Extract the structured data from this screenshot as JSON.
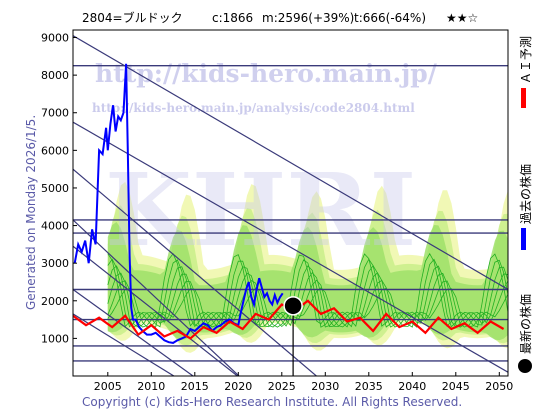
{
  "header": {
    "code_name": "2804=ブルドック",
    "current": "c:1866",
    "max": "m:2596(+39%)",
    "target": "t:666(-64%)",
    "rating": "★★☆"
  },
  "side_label": "Generated on Monday 2026/1/5.",
  "footer": "Copyright (c) Kids-Hero Research Institute. All Rights Reserved.",
  "watermark": {
    "url": "http://kids-hero.main.jp/",
    "analysis_url": "http://kids-hero.main.jp/analysis/code2804.html",
    "logo": "KHRI"
  },
  "legend": [
    {
      "label": "ＡＩ予測",
      "color": "#ff0000"
    },
    {
      "label": "過去の株価",
      "color": "#0000ff"
    },
    {
      "label": "最新の株価",
      "color": "#000000"
    }
  ],
  "chart_data": {
    "type": "line",
    "xlim": [
      2001,
      2051
    ],
    "ylim": [
      0,
      9200
    ],
    "xticks": [
      2005,
      2010,
      2015,
      2020,
      2025,
      2030,
      2035,
      2040,
      2045,
      2050
    ],
    "yticks": [
      1000,
      2000,
      3000,
      4000,
      5000,
      6000,
      7000,
      8000,
      9000
    ],
    "horizontal_levels": [
      8250,
      4150,
      3800,
      2300,
      1500,
      800,
      400
    ],
    "trend_lines": [
      {
        "x": [
          2001,
          2051
        ],
        "y": [
          9050,
          2300
        ]
      },
      {
        "x": [
          2001,
          2051
        ],
        "y": [
          6750,
          100
        ]
      },
      {
        "x": [
          2001,
          2030
        ],
        "y": [
          5500,
          -200
        ]
      },
      {
        "x": [
          2001,
          2021
        ],
        "y": [
          4150,
          -200
        ]
      },
      {
        "x": [
          2001,
          2021
        ],
        "y": [
          3450,
          -200
        ]
      },
      {
        "x": [
          2001,
          2016
        ],
        "y": [
          2300,
          -200
        ]
      },
      {
        "x": [
          2001,
          2014
        ],
        "y": [
          1650,
          -200
        ]
      }
    ],
    "series": [
      {
        "name": "過去の株価",
        "color": "#0000ff",
        "x": [
          2001.2,
          2001.6,
          2002.0,
          2002.4,
          2002.8,
          2003.2,
          2003.6,
          2004.0,
          2004.4,
          2004.8,
          2005.0,
          2005.3,
          2005.6,
          2005.9,
          2006.2,
          2006.5,
          2006.8,
          2007.1,
          2007.3,
          2007.5,
          2007.7,
          2007.9,
          2008.2,
          2008.6,
          2009.0,
          2009.5,
          2010.0,
          2010.5,
          2011.0,
          2011.5,
          2012.0,
          2012.5,
          2013.0,
          2013.5,
          2014.0,
          2014.5,
          2015.0,
          2015.5,
          2016.0,
          2016.5,
          2017.0,
          2017.5,
          2018.0,
          2018.5,
          2019.0,
          2019.5,
          2020.0,
          2020.3,
          2020.6,
          2020.9,
          2021.2,
          2021.5,
          2021.8,
          2022.1,
          2022.4,
          2022.7,
          2023.0,
          2023.3,
          2023.6,
          2023.9,
          2024.2,
          2024.5,
          2024.8,
          2025.1
        ],
        "y": [
          3000,
          3500,
          3300,
          3600,
          3000,
          3900,
          3500,
          6000,
          5900,
          6600,
          6000,
          6700,
          7200,
          6500,
          6900,
          6800,
          7000,
          8300,
          6000,
          3200,
          1800,
          1500,
          1500,
          1300,
          1200,
          1100,
          1100,
          1150,
          1050,
          950,
          900,
          880,
          950,
          1000,
          1050,
          1250,
          1200,
          1300,
          1400,
          1350,
          1200,
          1300,
          1350,
          1450,
          1500,
          1400,
          1350,
          1700,
          2000,
          2300,
          2500,
          2100,
          1900,
          2300,
          2600,
          2350,
          2100,
          2200,
          2000,
          1900,
          2150,
          1950,
          2100,
          2200
        ]
      },
      {
        "name": "ＡＩ予測",
        "color": "#ff0000",
        "x": [
          2001.0,
          2002.5,
          2004.0,
          2005.5,
          2007.0,
          2008.5,
          2010.0,
          2011.5,
          2013.0,
          2014.5,
          2016.0,
          2017.5,
          2019.0,
          2020.5,
          2022.0,
          2023.5,
          2025.0,
          2026.5,
          2028.0,
          2029.5,
          2031.0,
          2032.5,
          2034.0,
          2035.5,
          2037.0,
          2038.5,
          2040.0,
          2041.5,
          2043.0,
          2044.5,
          2046.0,
          2047.5,
          2049.0,
          2050.5
        ],
        "y": [
          1600,
          1350,
          1550,
          1300,
          1600,
          1100,
          1350,
          1050,
          1200,
          1000,
          1300,
          1150,
          1450,
          1250,
          1650,
          1500,
          1900,
          1750,
          2000,
          1650,
          1800,
          1450,
          1550,
          1200,
          1650,
          1300,
          1450,
          1150,
          1550,
          1250,
          1400,
          1150,
          1450,
          1250
        ]
      }
    ],
    "latest_point": {
      "x": 2026.3,
      "y": 1866
    }
  }
}
